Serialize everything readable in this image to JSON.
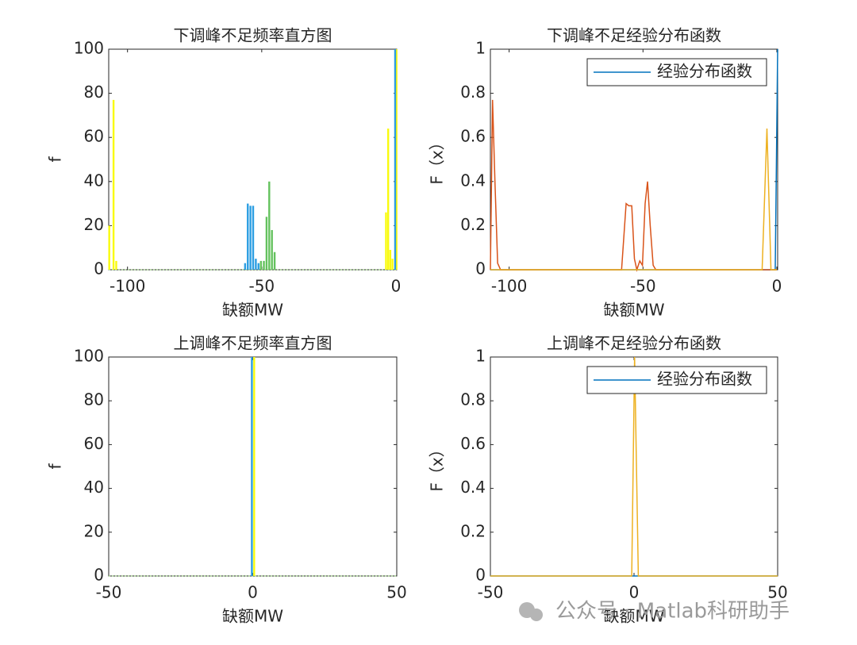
{
  "chart_data": [
    {
      "type": "bar",
      "title": "下调峰不足频率直方图",
      "xlabel": "缺额MW",
      "ylabel": "f",
      "xlim": [
        -107,
        0.3
      ],
      "ylim": [
        0,
        100
      ],
      "xticks": [
        -100,
        -50,
        0
      ],
      "yticks": [
        0,
        20,
        40,
        60,
        80,
        100
      ],
      "series": [
        {
          "color": "#f9fb0e",
          "x": [
            -106.8,
            -105.2,
            -104.2,
            -3.7,
            -2.9,
            -2.1,
            -1.3,
            0.2
          ],
          "values": [
            20,
            77,
            4,
            26,
            64,
            9,
            5,
            100
          ]
        },
        {
          "color": "#2c9ee2",
          "x": [
            -56.2,
            -55.2,
            -54.2,
            -53.2,
            -52.2,
            -51.2,
            -0.3
          ],
          "values": [
            3,
            30,
            29,
            29,
            5,
            3,
            100
          ]
        },
        {
          "color": "#64c25e",
          "x": [
            -50.3,
            -49.2,
            -48.2,
            -47.2,
            -46.2,
            -45.2
          ],
          "values": [
            4,
            4,
            24,
            40,
            18,
            8
          ]
        }
      ]
    },
    {
      "type": "line",
      "title": "下调峰不足经验分布函数",
      "xlabel": "缺额MW",
      "ylabel": "F（x）",
      "xlim": [
        -107,
        0.3
      ],
      "ylim": [
        0,
        1
      ],
      "xticks": [
        -100,
        -50,
        0
      ],
      "yticks": [
        0,
        0.2,
        0.4,
        0.6,
        0.8,
        1
      ],
      "legend": "northeast",
      "series": [
        {
          "name": "经验分布函数",
          "color": "#0072bd",
          "x": [
            -107,
            -0.6,
            0.3
          ],
          "values": [
            0,
            0,
            1
          ]
        },
        {
          "color": "#d95319",
          "x": [
            -107,
            -106.2,
            -105.3,
            -104.3,
            -103.2,
            -58,
            -56.3,
            -55.3,
            -54.2,
            -53.2,
            -52.3,
            -51.2,
            -50.2,
            -49.2,
            -48.3,
            -47.3,
            -46.2,
            -45.2,
            0
          ],
          "values": [
            0,
            0.77,
            0.4,
            0.03,
            0,
            0,
            0.3,
            0.29,
            0.29,
            0.05,
            0,
            0.04,
            0.02,
            0.3,
            0.4,
            0.2,
            0.02,
            0,
            0
          ]
        },
        {
          "color": "#edb120",
          "x": [
            -107,
            -5.5,
            -3.7,
            -2.2,
            0
          ],
          "values": [
            0,
            0,
            0.64,
            0,
            0
          ]
        }
      ]
    },
    {
      "type": "bar",
      "title": "上调峰不足频率直方图",
      "xlabel": "缺额MW",
      "ylabel": "f",
      "xlim": [
        -50,
        50
      ],
      "ylim": [
        0,
        100
      ],
      "xticks": [
        -50,
        0,
        50
      ],
      "yticks": [
        0,
        20,
        40,
        60,
        80,
        100
      ],
      "series": [
        {
          "color": "#2c9ee2",
          "x": [
            -0.3
          ],
          "values": [
            100
          ]
        },
        {
          "color": "#f9fb0e",
          "x": [
            0.5
          ],
          "values": [
            100
          ]
        }
      ]
    },
    {
      "type": "line",
      "title": "上调峰不足经验分布函数",
      "xlabel": "缺额MW",
      "ylabel": "F（x）",
      "xlim": [
        -50,
        50
      ],
      "ylim": [
        0,
        1
      ],
      "xticks": [
        -50,
        0,
        50
      ],
      "yticks": [
        0,
        0.2,
        0.4,
        0.6,
        0.8,
        1
      ],
      "legend": "northeast",
      "series": [
        {
          "name": "经验分布函数",
          "color": "#0072bd",
          "x": [
            -50,
            50
          ],
          "values": [
            0,
            0
          ]
        },
        {
          "color": "#edb120",
          "x": [
            -50,
            -0.8,
            0.2,
            1.5,
            50
          ],
          "values": [
            0,
            0,
            1,
            0,
            0
          ]
        }
      ]
    }
  ],
  "watermark": "公众号 · Matlab科研助手"
}
